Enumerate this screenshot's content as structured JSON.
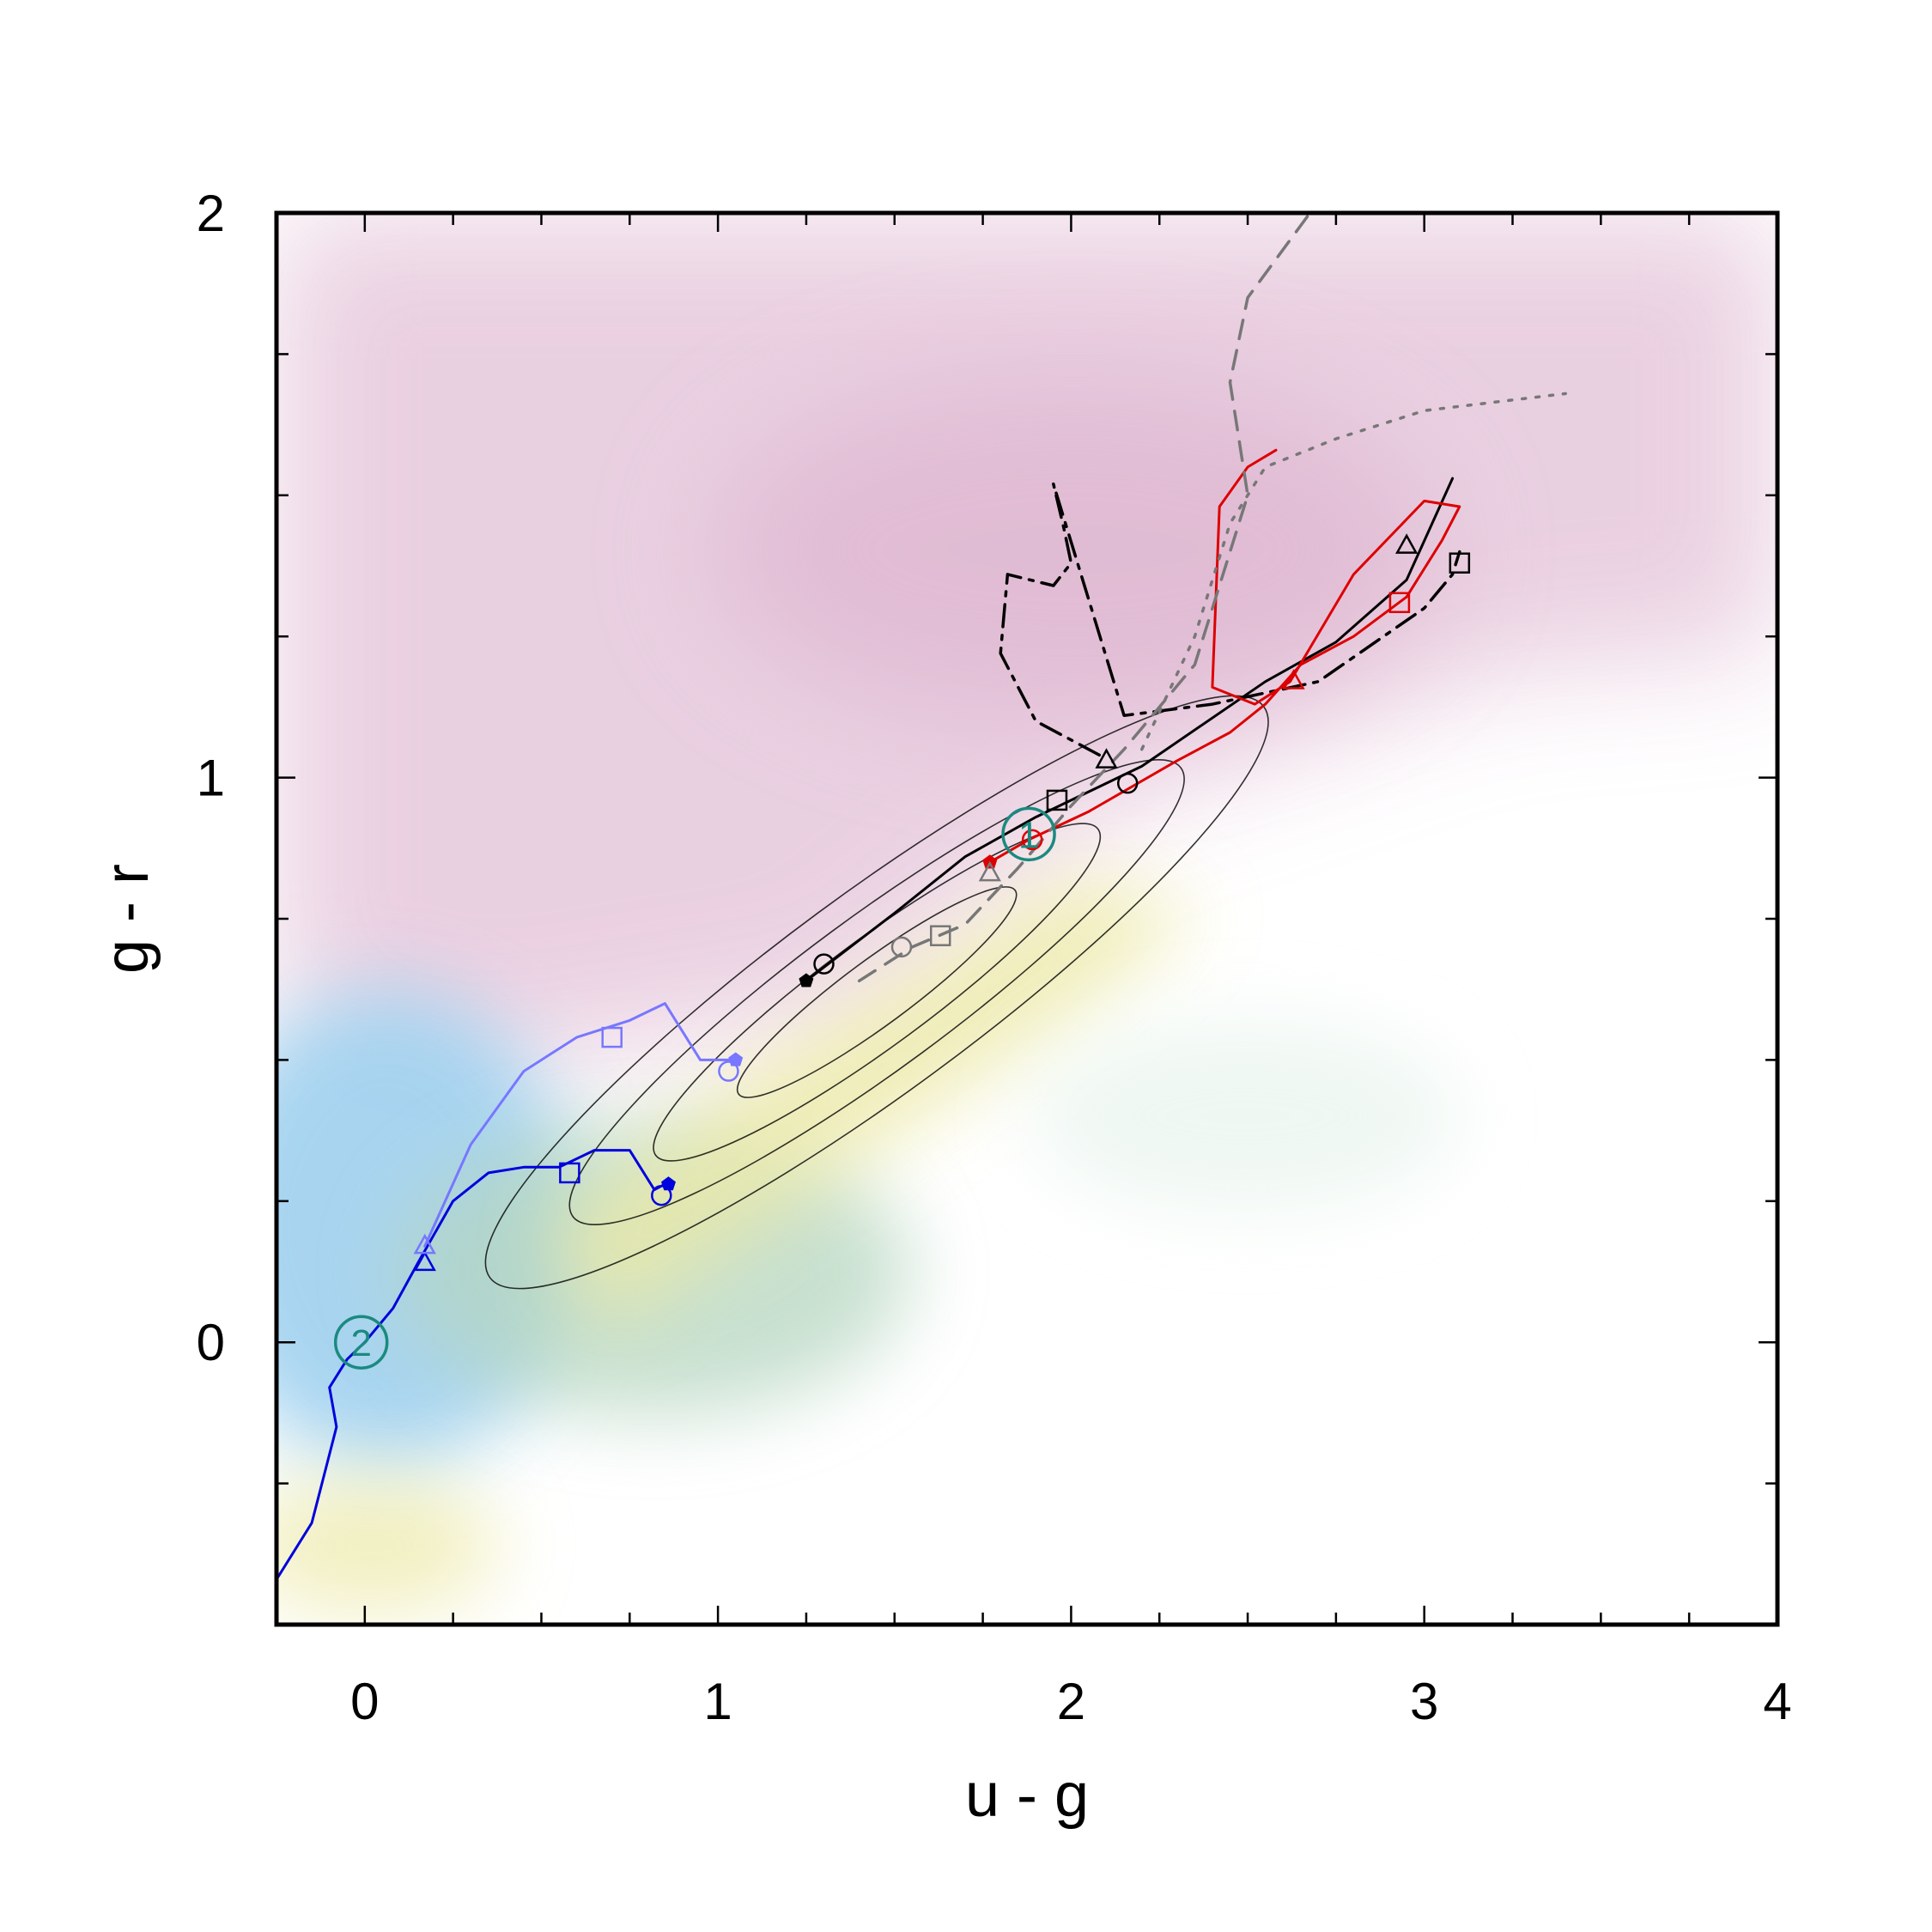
{
  "chart_data": {
    "type": "line",
    "title": "",
    "xlabel": "u - g",
    "ylabel": "g - r",
    "xlim": [
      -0.25,
      4.0
    ],
    "ylim": [
      -0.5,
      2.0
    ],
    "xticks": [
      0,
      1,
      2,
      3,
      4
    ],
    "yticks": [
      0,
      1,
      2
    ],
    "xtick_labels": [
      "0",
      "1",
      "2",
      "3",
      "4"
    ],
    "ytick_labels": [
      "0",
      "1",
      "2"
    ],
    "grid": false,
    "legend": "none",
    "background": "density map of u-g vs g-r colours (pink upper region, blue lower-left, yellow-green diagonal band)",
    "series": [
      {
        "color": "#0000dd",
        "style": "solid",
        "x": [
          -0.25,
          -0.15,
          -0.08,
          -0.1,
          -0.05,
          0.0,
          0.08,
          0.15,
          0.25,
          0.35,
          0.45,
          0.55,
          0.65,
          0.75,
          0.82,
          0.85
        ],
        "y": [
          -0.42,
          -0.32,
          -0.15,
          -0.08,
          -0.03,
          0.0,
          0.06,
          0.14,
          0.25,
          0.3,
          0.31,
          0.31,
          0.34,
          0.34,
          0.27,
          0.28
        ],
        "markers": [
          {
            "x": 0.17,
            "y": 0.14,
            "shape": "triangle"
          },
          {
            "x": 0.58,
            "y": 0.3,
            "shape": "square"
          },
          {
            "x": 0.84,
            "y": 0.26,
            "shape": "circle"
          },
          {
            "x": 0.86,
            "y": 0.28,
            "shape": "pentagon"
          }
        ]
      },
      {
        "color": "#7777ff",
        "style": "solid",
        "x": [
          0.17,
          0.3,
          0.45,
          0.6,
          0.75,
          0.85,
          0.95,
          1.05
        ],
        "y": [
          0.17,
          0.35,
          0.48,
          0.54,
          0.57,
          0.6,
          0.5,
          0.5
        ],
        "markers": [
          {
            "x": 0.17,
            "y": 0.17,
            "shape": "triangle"
          },
          {
            "x": 0.7,
            "y": 0.54,
            "shape": "square"
          },
          {
            "x": 1.03,
            "y": 0.48,
            "shape": "circle"
          },
          {
            "x": 1.05,
            "y": 0.5,
            "shape": "pentagon"
          }
        ]
      },
      {
        "color": "#000000",
        "style": "solid",
        "x": [
          1.25,
          1.5,
          1.7,
          1.9,
          2.2,
          2.55,
          2.75,
          2.95,
          3.08
        ],
        "y": [
          0.64,
          0.76,
          0.86,
          0.93,
          1.02,
          1.17,
          1.24,
          1.35,
          1.53
        ],
        "markers": [
          {
            "x": 1.25,
            "y": 0.64,
            "shape": "pentagon"
          },
          {
            "x": 1.3,
            "y": 0.67,
            "shape": "circle"
          },
          {
            "x": 1.96,
            "y": 0.96,
            "shape": "square"
          },
          {
            "x": 2.1,
            "y": 1.03,
            "shape": "triangle"
          },
          {
            "x": 2.16,
            "y": 0.99,
            "shape": "circle"
          },
          {
            "x": 2.95,
            "y": 1.41,
            "shape": "triangle"
          },
          {
            "x": 3.1,
            "y": 1.38,
            "shape": "square"
          }
        ]
      },
      {
        "color": "#000000",
        "style": "dashdot",
        "x": [
          2.08,
          1.9,
          1.8,
          1.82,
          1.95,
          2.0,
          1.98,
          1.95,
          2.15,
          2.4,
          2.7,
          3.0,
          3.08,
          3.1
        ],
        "y": [
          1.04,
          1.1,
          1.22,
          1.36,
          1.34,
          1.38,
          1.44,
          1.52,
          1.11,
          1.13,
          1.17,
          1.3,
          1.36,
          1.4
        ]
      },
      {
        "color": "#dd0000",
        "style": "solid",
        "x": [
          1.77,
          1.88,
          2.05,
          2.3,
          2.45,
          2.55,
          2.65,
          2.8,
          2.95,
          3.05,
          3.1,
          3.0,
          2.8,
          2.62,
          2.52,
          2.4,
          2.42,
          2.5,
          2.58
        ],
        "y": [
          0.85,
          0.89,
          0.94,
          1.03,
          1.08,
          1.13,
          1.2,
          1.25,
          1.32,
          1.42,
          1.48,
          1.49,
          1.36,
          1.17,
          1.13,
          1.16,
          1.48,
          1.55,
          1.58
        ],
        "markers": [
          {
            "x": 1.77,
            "y": 0.85,
            "shape": "pentagon"
          },
          {
            "x": 1.89,
            "y": 0.89,
            "shape": "circle"
          },
          {
            "x": 2.63,
            "y": 1.17,
            "shape": "triangle"
          },
          {
            "x": 2.93,
            "y": 1.31,
            "shape": "square"
          }
        ]
      },
      {
        "color": "#777777",
        "style": "dashed",
        "x": [
          1.4,
          1.55,
          1.7,
          1.85,
          2.0,
          2.15,
          2.35,
          2.5,
          2.45,
          2.5,
          2.7
        ],
        "y": [
          0.64,
          0.7,
          0.74,
          0.84,
          0.95,
          1.05,
          1.2,
          1.5,
          1.7,
          1.85,
          2.02
        ],
        "markers": [
          {
            "x": 1.52,
            "y": 0.7,
            "shape": "circle"
          },
          {
            "x": 1.63,
            "y": 0.72,
            "shape": "square"
          },
          {
            "x": 1.77,
            "y": 0.83,
            "shape": "triangle"
          }
        ]
      },
      {
        "color": "#777777",
        "style": "dotted",
        "x": [
          2.2,
          2.35,
          2.45,
          2.55,
          2.75,
          3.0,
          3.4
        ],
        "y": [
          1.05,
          1.25,
          1.45,
          1.55,
          1.6,
          1.65,
          1.68
        ]
      }
    ],
    "highlight_circles": [
      {
        "x": 1.88,
        "y": 0.9,
        "label": "1"
      },
      {
        "x": -0.01,
        "y": 0.0,
        "label": "2"
      }
    ],
    "contours": {
      "color": "#000000",
      "center": {
        "x": 1.45,
        "y": 0.62
      },
      "levels": 4
    }
  },
  "colors": {
    "blue_track": "#0000dd",
    "light_blue_track": "#7777ff",
    "black_track": "#000000",
    "red_track": "#dd0000",
    "gray_track": "#777777",
    "teal_marker": "#1a8a80",
    "bg_pink": "#e6c8dc",
    "bg_blue": "#9fd0ef",
    "bg_yellow": "#ece9a6"
  }
}
